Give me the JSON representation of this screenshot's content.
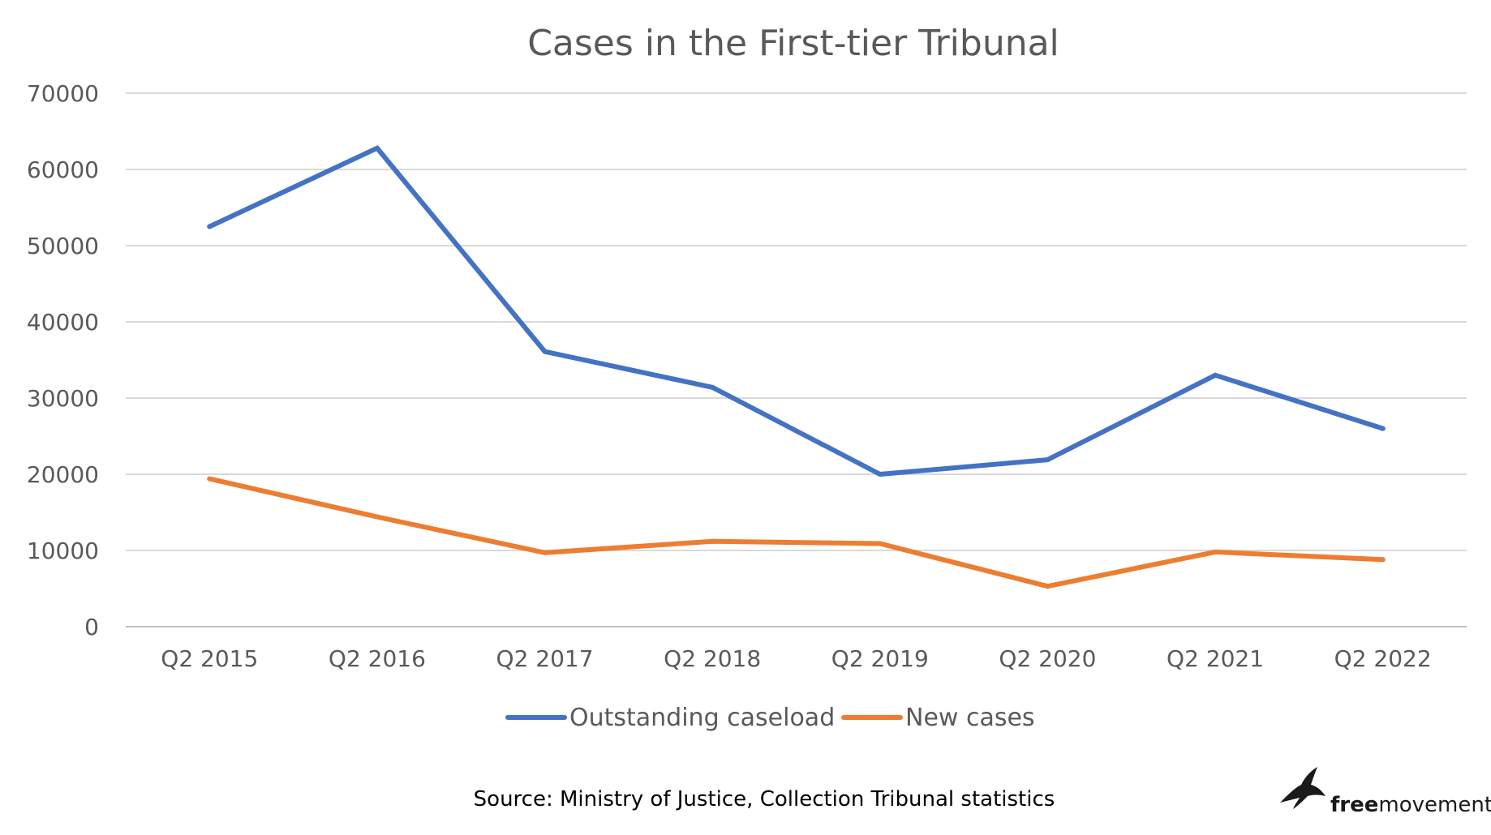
{
  "chart_data": {
    "type": "line",
    "title": "Cases in the First-tier Tribunal",
    "xlabel": "",
    "ylabel": "",
    "categories": [
      "Q2 2015",
      "Q2 2016",
      "Q2 2017",
      "Q2 2018",
      "Q2 2019",
      "Q2 2020",
      "Q2 2021",
      "Q2 2022"
    ],
    "ylim": [
      0,
      70000
    ],
    "yticks": [
      "0",
      "10000",
      "20000",
      "30000",
      "40000",
      "50000",
      "60000",
      "70000"
    ],
    "grid": true,
    "legend_position": "bottom",
    "series": [
      {
        "name": "Outstanding caseload",
        "color": "#4472C4",
        "values": [
          52500,
          62800,
          36100,
          31400,
          20000,
          21900,
          33000,
          26000
        ]
      },
      {
        "name": "New cases",
        "color": "#ED7D31",
        "values": [
          19400,
          14400,
          9700,
          11200,
          10900,
          5300,
          9800,
          8800
        ]
      }
    ]
  },
  "footer": {
    "source": "Source: Ministry of Justice, Collection Tribunal statistics"
  },
  "logo": {
    "icon": "bird-icon",
    "text_bold": "free",
    "text_regular": "movement"
  }
}
